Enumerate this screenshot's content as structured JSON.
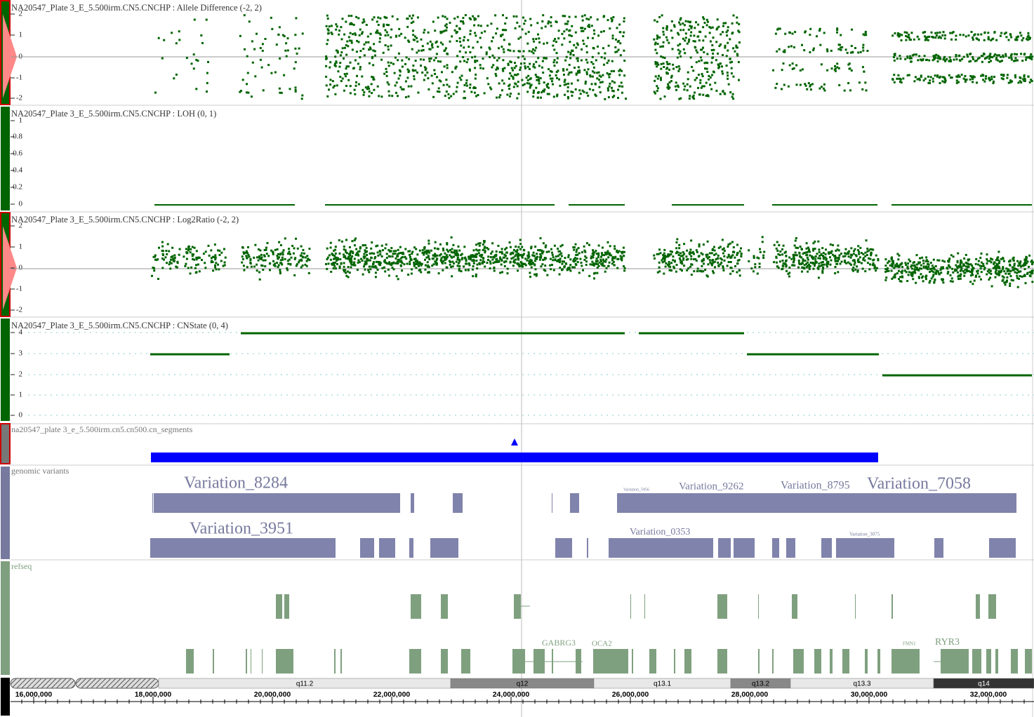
{
  "tracks": [
    {
      "title": "NA20547_Plate 3_E_5.500irm.CN5.CNCHP : Allele Difference (-2, 2)",
      "ticks": [
        "2",
        "1",
        "0",
        "-1",
        "-2"
      ]
    },
    {
      "title": "NA20547_Plate 3_E_5.500irm.CN5.CNCHP : LOH (0, 1)",
      "ticks": [
        "1",
        "0.8",
        "0.6",
        "0.4",
        "0.2",
        "0"
      ]
    },
    {
      "title": "NA20547_Plate 3_E_5.500irm.CN5.CNCHP : Log2Ratio (-2, 2)",
      "ticks": [
        "2",
        "1",
        "0",
        "-1",
        "-2"
      ]
    },
    {
      "title": "NA20547_Plate 3_E_5.500irm.CN5.CNCHP : CNState (0, 4)",
      "ticks": [
        "4",
        "3",
        "2",
        "1",
        "0"
      ]
    }
  ],
  "segments_track": {
    "title": "na20547_plate 3_e_5.500irm.cn5.cn500.cn_segments"
  },
  "variants_track": {
    "title": "genomic variants",
    "labels": [
      "Variation_8284",
      "Variation_9262",
      "Variation_8795",
      "Variation_7058",
      "Variation_5956",
      "Variation_3951",
      "Variation_0353",
      "Variation_3075"
    ]
  },
  "refseq_track": {
    "title": "refseq",
    "genes": [
      "GABRG3",
      "OCA2",
      "FMN1",
      "RYR3"
    ]
  },
  "cytobands": [
    "q11.2",
    "q12",
    "q13.1",
    "q13.2",
    "q13.3",
    "q14"
  ],
  "ruler": [
    "16,000,000",
    "18,000,000",
    "20,000,000",
    "22,000,000",
    "24,000,000",
    "26,000,000",
    "28,000,000",
    "30,000,000",
    "32,000,000"
  ]
}
